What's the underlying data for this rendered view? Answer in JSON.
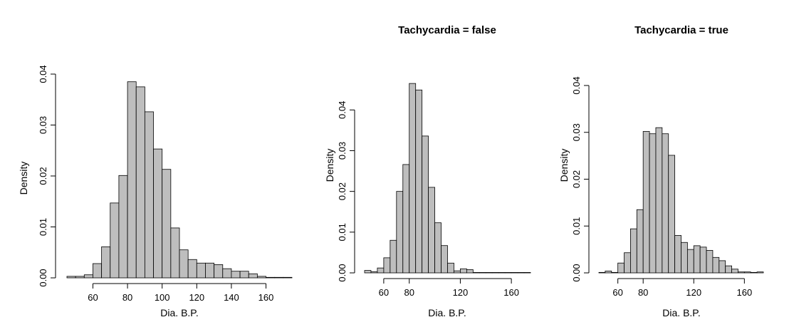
{
  "chart_data": [
    {
      "type": "bar",
      "title": "",
      "xlabel": "Dia. B.P.",
      "ylabel": "Density",
      "bin_edges": [
        45,
        50,
        55,
        60,
        65,
        70,
        75,
        80,
        85,
        90,
        95,
        100,
        105,
        110,
        115,
        120,
        125,
        130,
        135,
        140,
        145,
        150,
        155,
        160,
        165,
        170,
        175
      ],
      "values": [
        0.0003,
        0.0003,
        0.0006,
        0.0028,
        0.0061,
        0.0147,
        0.0201,
        0.0385,
        0.0375,
        0.0326,
        0.0253,
        0.0213,
        0.0098,
        0.0055,
        0.0036,
        0.0029,
        0.0029,
        0.0026,
        0.0018,
        0.0013,
        0.0013,
        0.0008,
        0.0003,
        0.0001,
        0.0001,
        0.0001
      ],
      "xticks": [
        60,
        80,
        100,
        120,
        140,
        160
      ],
      "yticks": [
        0.0,
        0.01,
        0.02,
        0.03,
        0.04
      ],
      "ytick_labels": [
        "0.00",
        "0.01",
        "0.02",
        "0.03",
        "0.04"
      ],
      "xlim": [
        45,
        175
      ],
      "ylim": [
        0,
        0.04
      ],
      "grid": false
    },
    {
      "type": "bar",
      "title": "Tachycardia = false",
      "xlabel": "Dia. B.P.",
      "ylabel": "Density",
      "bin_edges": [
        45,
        50,
        55,
        60,
        65,
        70,
        75,
        80,
        85,
        90,
        95,
        100,
        105,
        110,
        115,
        120,
        125,
        130,
        135,
        140,
        145,
        150,
        155,
        160,
        165,
        170,
        175
      ],
      "values": [
        0.0006,
        0.0003,
        0.0012,
        0.0037,
        0.008,
        0.02,
        0.0266,
        0.0465,
        0.0449,
        0.0336,
        0.021,
        0.0123,
        0.0067,
        0.0024,
        0.0005,
        0.001,
        0.0008,
        0.0001,
        0.0001,
        0.0001,
        0.0001,
        0.0001,
        0.0001,
        0.0001,
        0.0001,
        0.0001
      ],
      "xticks": [
        60,
        80,
        120,
        160
      ],
      "yticks": [
        0.0,
        0.01,
        0.02,
        0.03,
        0.04
      ],
      "ytick_labels": [
        "0.00",
        "0.01",
        "0.02",
        "0.03",
        "0.04"
      ],
      "xlim": [
        45,
        175
      ],
      "ylim": [
        0,
        0.046
      ],
      "grid": false
    },
    {
      "type": "bar",
      "title": "Tachycardia = true",
      "xlabel": "Dia. B.P.",
      "ylabel": "Density",
      "bin_edges": [
        45,
        50,
        55,
        60,
        65,
        70,
        75,
        80,
        85,
        90,
        95,
        100,
        105,
        110,
        115,
        120,
        125,
        130,
        135,
        140,
        145,
        150,
        155,
        160,
        165,
        170,
        175
      ],
      "values": [
        0.0001,
        0.0004,
        0.0001,
        0.0021,
        0.0043,
        0.0094,
        0.0135,
        0.0302,
        0.0297,
        0.031,
        0.0297,
        0.0251,
        0.008,
        0.0065,
        0.005,
        0.0058,
        0.0055,
        0.0048,
        0.0033,
        0.0026,
        0.0015,
        0.0008,
        0.0002,
        0.0002,
        0.0001,
        0.0002
      ],
      "xticks": [
        60,
        80,
        120,
        160
      ],
      "yticks": [
        0.0,
        0.01,
        0.02,
        0.03,
        0.04
      ],
      "ytick_labels": [
        "0.00",
        "0.01",
        "0.02",
        "0.03",
        "0.04"
      ],
      "xlim": [
        45,
        175
      ],
      "ylim": [
        0,
        0.04
      ],
      "grid": false
    }
  ]
}
